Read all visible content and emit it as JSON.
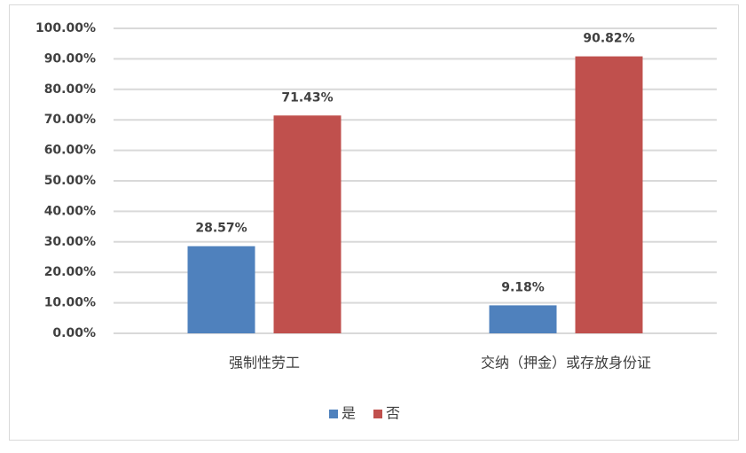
{
  "chart_data": {
    "type": "bar",
    "categories": [
      "强制性劳工",
      "交纳（押金）或存放身份证"
    ],
    "series": [
      {
        "name": "是",
        "color": "#4f81bd",
        "values": [
          28.57,
          9.18
        ],
        "value_labels": [
          "28.57%",
          "9.18%"
        ]
      },
      {
        "name": "否",
        "color": "#c0504d",
        "values": [
          71.43,
          90.82
        ],
        "value_labels": [
          "71.43%",
          "90.82%"
        ]
      }
    ],
    "ylim": [
      0,
      100
    ],
    "yticks": [
      {
        "value": 0,
        "label": "0.00%"
      },
      {
        "value": 10,
        "label": "10.00%"
      },
      {
        "value": 20,
        "label": "20.00%"
      },
      {
        "value": 30,
        "label": "30.00%"
      },
      {
        "value": 40,
        "label": "40.00%"
      },
      {
        "value": 50,
        "label": "50.00%"
      },
      {
        "value": 60,
        "label": "60.00%"
      },
      {
        "value": 70,
        "label": "70.00%"
      },
      {
        "value": 80,
        "label": "80.00%"
      },
      {
        "value": 90,
        "label": "90.00%"
      },
      {
        "value": 100,
        "label": "100.00%"
      }
    ],
    "grid": true,
    "legend": "bottom"
  }
}
